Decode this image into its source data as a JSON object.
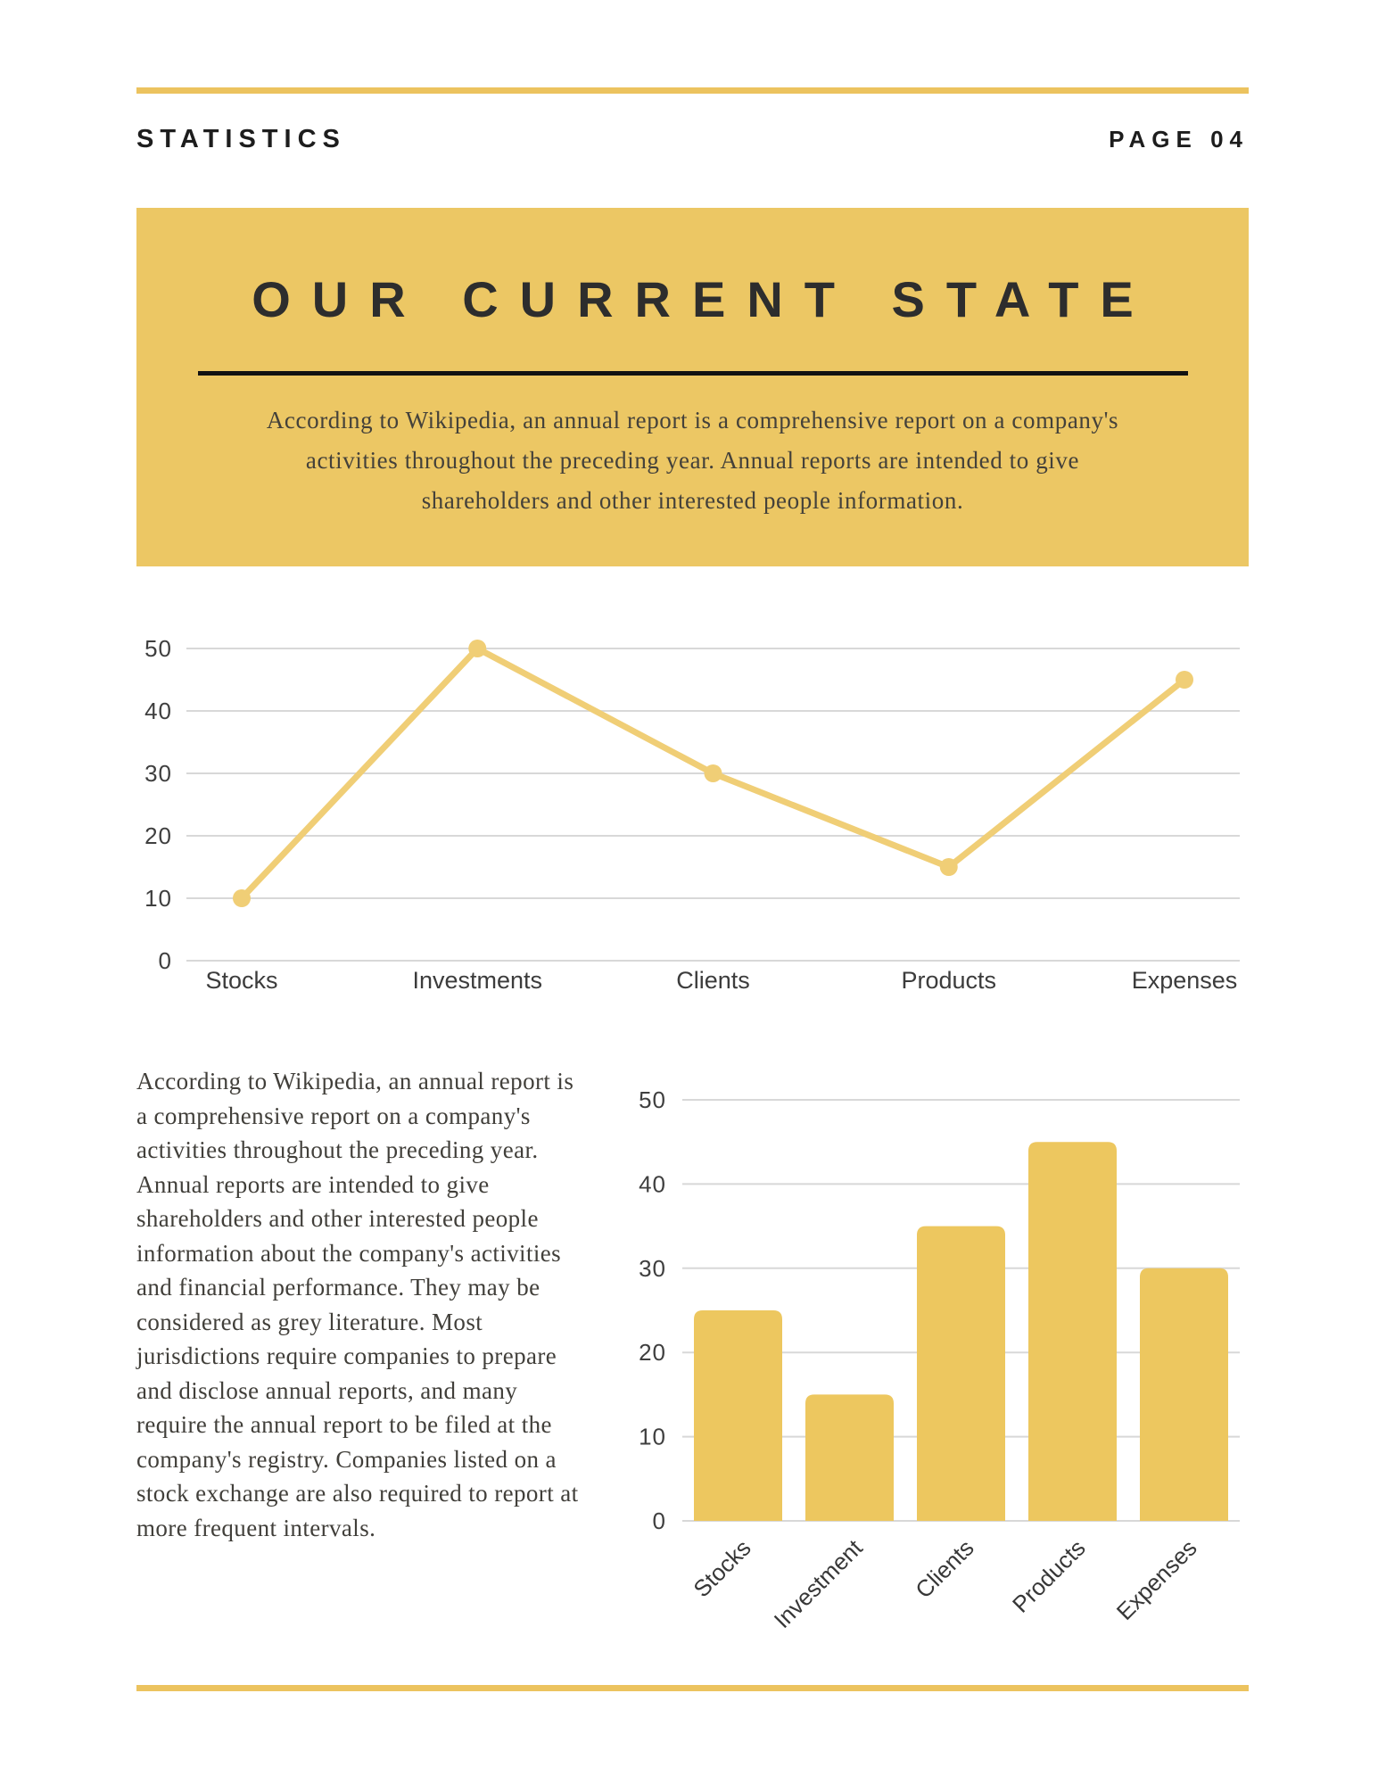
{
  "header": {
    "left": "STATISTICS",
    "right": "PAGE 04"
  },
  "banner": {
    "title": "OUR CURRENT STATE",
    "paragraph": "According to Wikipedia, an annual report is a comprehensive report on a company's activities throughout the preceding year. Annual reports are intended to give shareholders and other interested people information."
  },
  "body": {
    "paragraph": "According to Wikipedia, an annual report is a comprehensive report on a company's activities throughout the preceding year. Annual reports are intended to give shareholders and other interested people information about the company's activities and financial performance. They may be considered as grey literature. Most jurisdictions require companies to prepare and disclose annual reports, and many require the annual report to be filed at the company's registry. Companies listed on a stock exchange are also required to report at more frequent intervals.",
    "bottom_rule": "decorative-yellow-rule",
    "top_rule": "decorative-yellow-rule"
  },
  "colors": {
    "accent_rule": "#ecc35f",
    "banner_bg": "#ecc764",
    "banner_divider": "#121212",
    "bar_fill": "#edc75f",
    "line_stroke": "#f0ce76",
    "grid": "#d8d8d8",
    "heading_text": "#1d1d1d",
    "banner_title_text": "#2d2d2d",
    "serif_text": "#413f3a",
    "tick_text": "#3f3f3f"
  },
  "chart_data": [
    {
      "type": "line",
      "title": "",
      "categories": [
        "Stocks",
        "Investments",
        "Clients",
        "Products",
        "Expenses"
      ],
      "values": [
        10,
        50,
        30,
        15,
        45
      ],
      "xlabel": "",
      "ylabel": "",
      "ylim": [
        0,
        50
      ],
      "yticks": [
        0,
        10,
        20,
        30,
        40,
        50
      ],
      "grid": true,
      "legend": "none",
      "marker": "circle"
    },
    {
      "type": "bar",
      "title": "",
      "categories": [
        "Stocks",
        "Investment",
        "Clients",
        "Products",
        "Expenses"
      ],
      "values": [
        25,
        15,
        35,
        45,
        30
      ],
      "xlabel": "",
      "ylabel": "",
      "ylim": [
        0,
        50
      ],
      "yticks": [
        0,
        10,
        20,
        30,
        40,
        50
      ],
      "grid": true,
      "legend": "none",
      "xtick_rotation": -45
    }
  ]
}
